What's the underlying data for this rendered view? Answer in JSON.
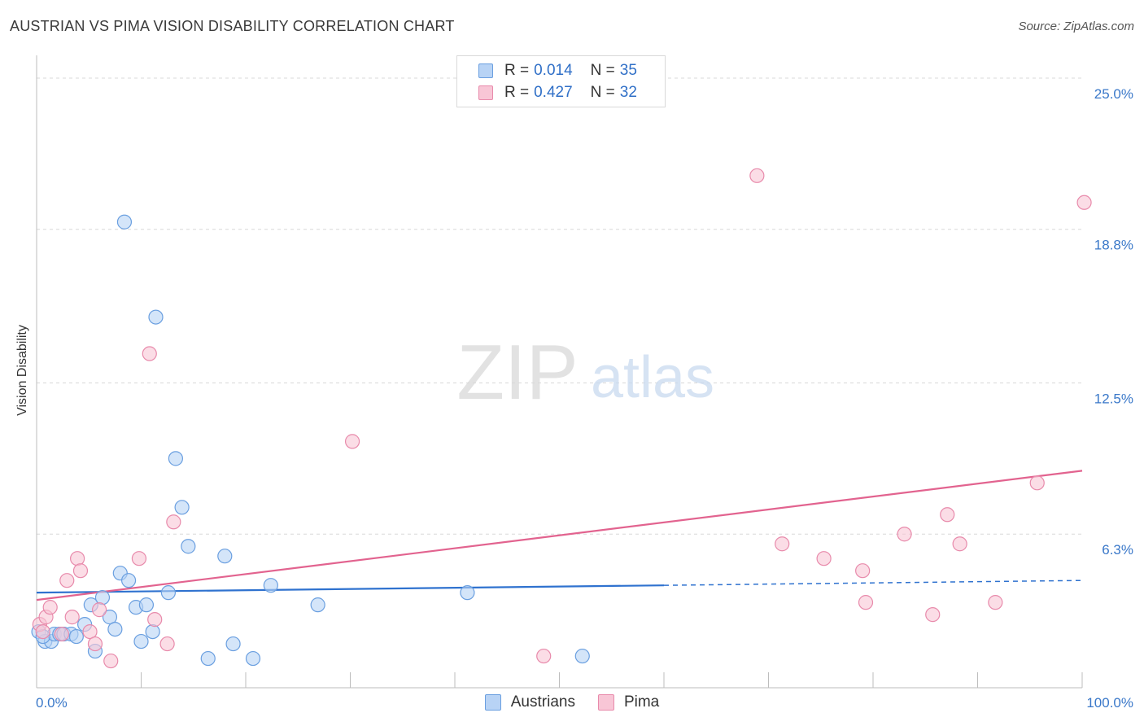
{
  "title": "AUSTRIAN VS PIMA VISION DISABILITY CORRELATION CHART",
  "source": "Source: ZipAtlas.com",
  "watermark": {
    "zip": "ZIP",
    "atlas": "atlas"
  },
  "colors": {
    "blue_fill": "#b8d3f5",
    "blue_stroke": "#6a9fe0",
    "blue_line": "#2f72cf",
    "pink_fill": "#f8c6d6",
    "pink_stroke": "#e88aab",
    "pink_line": "#e2638f",
    "tick_label": "#3a78c9",
    "grid": "#d8d8d8"
  },
  "legend": {
    "rows": [
      {
        "series": "Austrians",
        "r_label": "R =",
        "r_value": "0.014",
        "n_label": "N =",
        "n_value": "35"
      },
      {
        "series": "Pima",
        "r_label": "R =",
        "r_value": "0.427",
        "n_label": "N =",
        "n_value": "32"
      }
    ]
  },
  "chart_data": {
    "type": "scatter",
    "title": "AUSTRIAN VS PIMA VISION DISABILITY CORRELATION CHART",
    "xlabel": "",
    "ylabel": "Vision Disability",
    "xlim": [
      0,
      100
    ],
    "ylim": [
      0,
      25.6
    ],
    "x_tick_labels": [
      {
        "value": 0,
        "label": "0.0%"
      },
      {
        "value": 100,
        "label": "100.0%"
      }
    ],
    "y_ticks": [
      {
        "value": 6.3,
        "label": "6.3%"
      },
      {
        "value": 12.5,
        "label": "12.5%"
      },
      {
        "value": 18.8,
        "label": "18.8%"
      },
      {
        "value": 25.0,
        "label": "25.0%"
      }
    ],
    "x_minor_ticks": [
      10,
      20,
      30,
      40,
      50,
      60,
      70,
      80,
      90,
      100
    ],
    "series": [
      {
        "name": "Austrians",
        "x": [
          0.2,
          0.8,
          1.4,
          1.7,
          2.2,
          2.6,
          3.3,
          3.8,
          4.6,
          5.2,
          5.6,
          6.3,
          7.0,
          7.5,
          8.0,
          8.4,
          8.8,
          9.5,
          10.0,
          10.5,
          11.1,
          11.4,
          12.6,
          13.3,
          13.9,
          14.5,
          16.4,
          18.0,
          18.8,
          20.7,
          22.4,
          26.9,
          41.2,
          52.2,
          0.6
        ],
        "y": [
          2.3,
          1.9,
          1.9,
          2.2,
          2.2,
          2.2,
          2.2,
          2.1,
          2.6,
          3.4,
          1.5,
          3.7,
          2.9,
          2.4,
          4.7,
          19.1,
          4.4,
          3.3,
          1.9,
          3.4,
          2.3,
          15.2,
          3.9,
          9.4,
          7.4,
          5.8,
          1.2,
          5.4,
          1.8,
          1.2,
          4.2,
          3.4,
          3.9,
          1.3,
          2.1
        ],
        "trend": {
          "x0": 0,
          "y0": 3.9,
          "x1": 60,
          "y1": 4.2,
          "dash_to_x": 100,
          "dash_to_y": 4.4
        }
      },
      {
        "name": "Pima",
        "x": [
          0.3,
          0.6,
          0.9,
          1.3,
          2.4,
          2.9,
          3.4,
          3.9,
          4.2,
          5.1,
          5.6,
          6.0,
          7.1,
          9.8,
          10.8,
          11.3,
          12.5,
          13.1,
          30.2,
          48.5,
          68.9,
          71.3,
          75.3,
          79.0,
          79.3,
          83.0,
          85.7,
          87.1,
          88.3,
          91.7,
          95.7,
          100.2
        ],
        "y": [
          2.6,
          2.3,
          2.9,
          3.3,
          2.2,
          4.4,
          2.9,
          5.3,
          4.8,
          2.3,
          1.8,
          3.2,
          1.1,
          5.3,
          13.7,
          2.8,
          1.8,
          6.8,
          10.1,
          1.3,
          21.0,
          5.9,
          5.3,
          4.8,
          3.5,
          6.3,
          3.0,
          7.1,
          5.9,
          3.5,
          8.4,
          19.9
        ],
        "trend": {
          "x0": 0,
          "y0": 3.6,
          "x1": 100,
          "y1": 8.9
        }
      }
    ]
  }
}
